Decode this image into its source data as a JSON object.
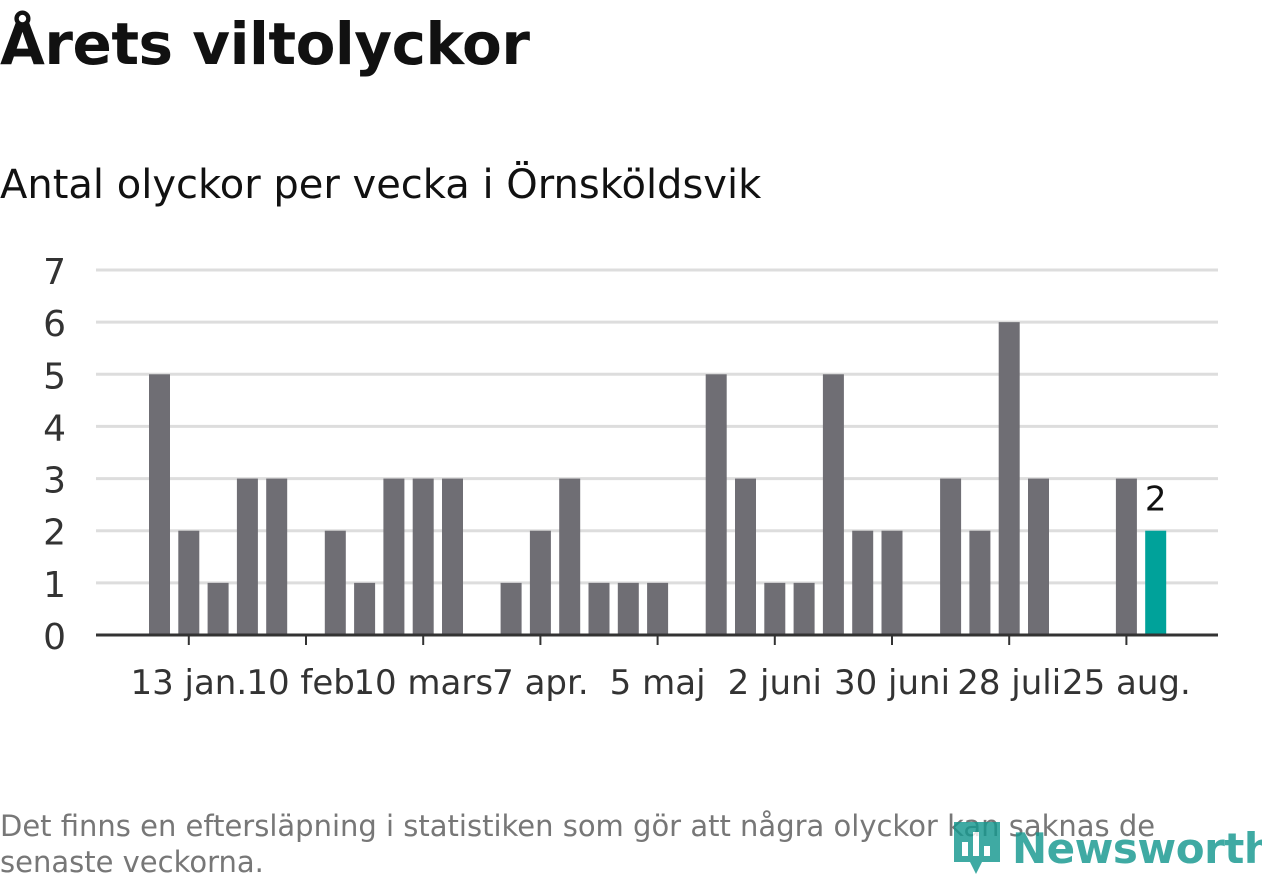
{
  "title": "Årets viltolyckor",
  "subtitle": "Antal olyckor per vecka i Örnsköldsvik",
  "footnote": "Det finns en eftersläpning i statistiken som gör att några olyckor kan saknas de senaste veckorna.",
  "logo": {
    "text": "Newsworthy",
    "icon": "newsworthy-logo-icon"
  },
  "colors": {
    "bar": "#6f6e74",
    "highlight": "#00a29a",
    "grid": "#dddddd",
    "axis": "#333333",
    "text": "#333333"
  },
  "chart_data": {
    "type": "bar",
    "x": [
      1,
      2,
      3,
      4,
      5,
      6,
      7,
      8,
      9,
      10,
      11,
      12,
      13,
      14,
      15,
      16,
      17,
      18,
      19,
      20,
      21,
      22,
      23,
      24,
      25,
      26,
      27,
      28,
      29,
      30,
      31,
      32,
      33,
      34,
      35
    ],
    "values": [
      5,
      2,
      1,
      3,
      3,
      0,
      2,
      1,
      3,
      3,
      3,
      0,
      1,
      2,
      3,
      1,
      1,
      1,
      0,
      5,
      3,
      1,
      1,
      5,
      2,
      2,
      0,
      3,
      2,
      6,
      3,
      0,
      0,
      3,
      2
    ],
    "xticks": [
      {
        "x": 2,
        "label": "13 jan."
      },
      {
        "x": 6,
        "label": "10 feb."
      },
      {
        "x": 10,
        "label": "10 mars"
      },
      {
        "x": 14,
        "label": "7 apr."
      },
      {
        "x": 18,
        "label": "5 maj"
      },
      {
        "x": 22,
        "label": "2 juni"
      },
      {
        "x": 26,
        "label": "30 juni"
      },
      {
        "x": 30,
        "label": "28 juli"
      },
      {
        "x": 34,
        "label": "25 aug."
      }
    ],
    "yticks": [
      0,
      1,
      2,
      3,
      4,
      5,
      6,
      7
    ],
    "ylim": [
      0,
      7
    ],
    "highlight_index": 34,
    "highlight_label": "2",
    "grid": true
  }
}
